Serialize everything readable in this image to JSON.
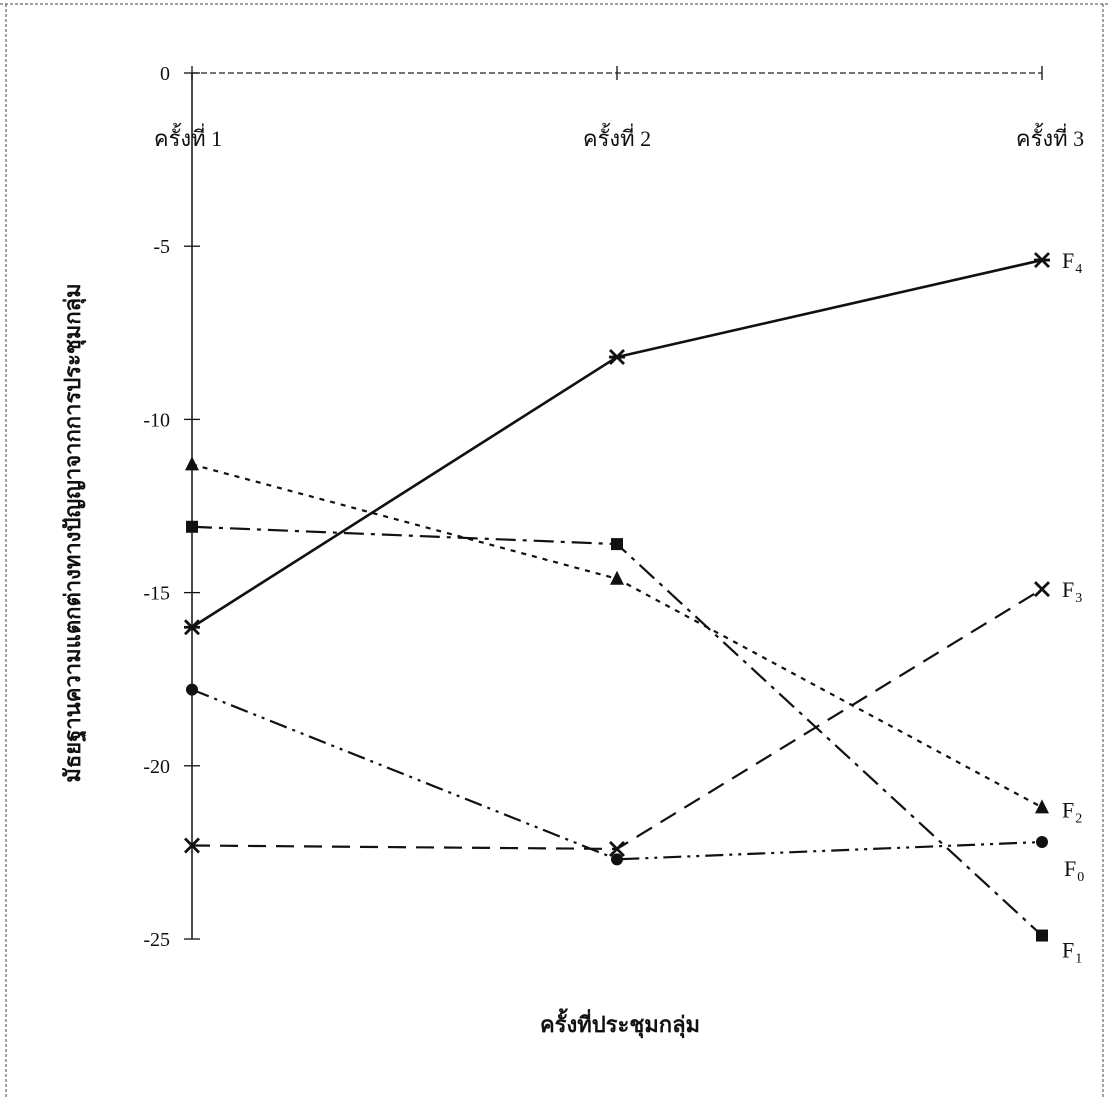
{
  "chart_data": {
    "type": "line",
    "title": "",
    "xlabel": "ครั้งที่ประชุมกลุ่ม",
    "ylabel": "มัธยฐานความแตกต่างทางปัญญาจากการประชุมกลุ่ม",
    "categories": [
      "ครั้งที่ 1",
      "ครั้งที่ 2",
      "ครั้งที่ 3"
    ],
    "ylim": [
      -25,
      0
    ],
    "yticks": [
      0,
      -5,
      -10,
      -15,
      -20,
      -25
    ],
    "grid": false,
    "legend": "inline-right",
    "series": [
      {
        "name": "F",
        "sub": "4",
        "values": [
          -16.0,
          -8.2,
          -5.4
        ],
        "marker": "star",
        "dash": "solid"
      },
      {
        "name": "F",
        "sub": "3",
        "values": [
          -22.3,
          -22.4,
          -14.9
        ],
        "marker": "x",
        "dash": "dashed"
      },
      {
        "name": "F",
        "sub": "2",
        "values": [
          -11.3,
          -14.6,
          -21.2
        ],
        "marker": "triangle",
        "dash": "dotted"
      },
      {
        "name": "F",
        "sub": "0",
        "values": [
          -17.8,
          -22.7,
          -22.2
        ],
        "marker": "circle",
        "dash": "dashdotdot"
      },
      {
        "name": "F",
        "sub": "1",
        "values": [
          -13.1,
          -13.6,
          -24.9
        ],
        "marker": "square",
        "dash": "dashdot"
      }
    ]
  }
}
